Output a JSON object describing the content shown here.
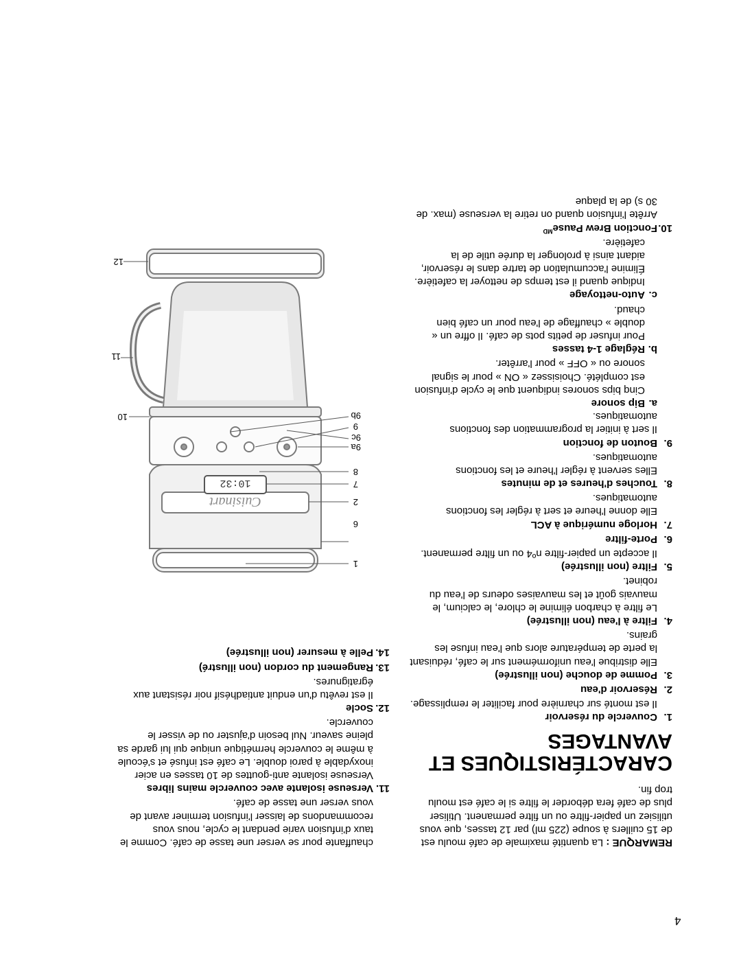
{
  "text_color": "#000000",
  "bg_color": "#ffffff",
  "remark": {
    "label": "REMARQUE :",
    "body": "La quantité maximale de café moulu est de 15 cuillers à soupe (225 ml) par 12 tasses, que vous utilisiez un papier-filtre ou un filtre permanent. Utiliser plus de café fera déborder le filtre si le café est moulu trop fin."
  },
  "title": "CARACTÉRISTIQUES ET AVANTAGES",
  "features": [
    {
      "label": "Couvercle du réservoir",
      "desc": "Il est monté sur charnière pour faciliter le remplissage."
    },
    {
      "label": "Réservoir d'eau",
      "desc": ""
    },
    {
      "label": "Pomme de douche (non illustrée)",
      "desc": "Elle distribue l'eau uniformément sur le café, réduisant la perte de température alors que l'eau infuse les grains."
    },
    {
      "label": "Filtre à l'eau (non illustrée)",
      "desc": "Le filtre à charbon élimine le chlore, le calcium, le mauvais goût et les mauvaises odeurs de l'eau du robinet."
    },
    {
      "label": "Filtre (non illustrée)",
      "desc": "Il accepte un papier-filtre nº4 ou un filtre permanent."
    },
    {
      "label": "Porte-filtre",
      "desc": ""
    },
    {
      "label": "Horloge numérique à ACL",
      "desc": "Elle donne l'heure et sert à régler les fonctions automatiques."
    },
    {
      "label": "Touches d'heures et de minutes",
      "desc": "Elles servent à régler l'heure et les fonctions automatiques."
    },
    {
      "label": "Bouton de fonction",
      "desc": "Il sert à initier la programmation des fonctions automatiques.",
      "sub": [
        {
          "letter": "a",
          "label": "Bip sonore",
          "desc": "Cinq bips sonores indiquent que le cycle d'infusion est complété. Choisissez « ON » pour le signal sonore ou « OFF » pour l'arrêter."
        },
        {
          "letter": "b",
          "label": "Réglage 1-4 tasses",
          "desc": "Pour infuser de petits pots de café. Il offre un « double » chauffage de l'eau pour un café bien chaud."
        },
        {
          "letter": "c",
          "label": "Auto-nettoyage",
          "desc": "Indique quand il est temps de nettoyer la cafetière. Élimine l'accumulation de tartre dans le réservoir, aidant ainsi à prolonger la durée utile de la cafetière."
        }
      ]
    },
    {
      "label": "Fonction Brew Pause",
      "sup": "MD",
      "desc": "Arrête l'infusion quand on retire la verseuse (max. de 30 s) de la plaque"
    }
  ],
  "features_right_start": [
    {
      "prefix": "",
      "desc": "chauffante pour se verser une tasse de café. Comme le taux d'infusion varie pendant le cycle, nous vous recommandons de laisser l'infusion terminer avant de vous verser une tasse de café."
    },
    {
      "num": "11",
      "label": "Verseuse isolante avec couvercle mains libres",
      "desc": "Verseuse isolante anti-gouttes de 10 tasses en acier inoxydable à paroi double.\nLe café est infusé et s'écoule à même le couvercle hermétique unique qui lui garde sa pleine saveur. Nul besoin d'ajuster ou de visser le couvercle."
    },
    {
      "num": "12",
      "label": "Socle",
      "desc": "Il est revêtu d'un enduit antiadhésif noir résistant aux égratignures."
    },
    {
      "num": "13",
      "label": "Rangement du cordon (non illustré)",
      "desc": ""
    },
    {
      "num": "14",
      "label": "Pelle à mesurer (non illustrée)",
      "desc": ""
    }
  ],
  "diagram": {
    "brand": "Cuisinart",
    "clock": "10:32",
    "callouts": [
      "1",
      "2",
      "6",
      "7",
      "8",
      "9",
      "9a",
      "9b",
      "9c",
      "10",
      "11",
      "12"
    ],
    "line_color": "#666666",
    "body_fill": "#f1f1f1",
    "body_stroke": "#7a7a7a",
    "carafe_fill": "#e7e7e7"
  },
  "page_number": "4"
}
